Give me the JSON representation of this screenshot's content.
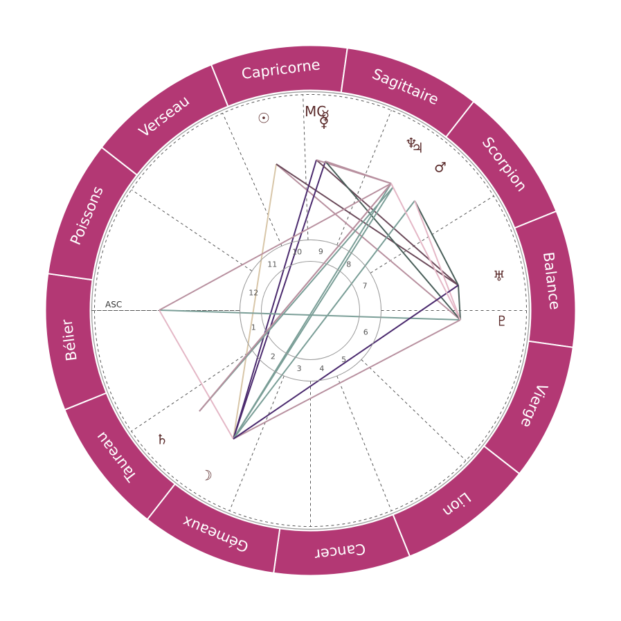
{
  "colors": {
    "zodiac_band": "#b33874",
    "band_divider": "#ffffff",
    "cusp_line": "#555555",
    "aspect_palette": [
      "#4b2a6e",
      "#7a9e97",
      "#b8909f",
      "#e4b7c6",
      "#6b4a5a",
      "#4a5f5a",
      "#d8c6a8"
    ]
  },
  "signs": [
    {
      "name": "Capricorne",
      "symbol": "capricorn"
    },
    {
      "name": "Sagittaire",
      "symbol": "sagittarius"
    },
    {
      "name": "Scorpion",
      "symbol": "scorpio"
    },
    {
      "name": "Balance",
      "symbol": "libra"
    },
    {
      "name": "Vierge",
      "symbol": "virgo"
    },
    {
      "name": "Lion",
      "symbol": "leo"
    },
    {
      "name": "Cancer",
      "symbol": "cancer"
    },
    {
      "name": "Gémeaux",
      "symbol": "gemini"
    },
    {
      "name": "Taureau",
      "symbol": "taurus"
    },
    {
      "name": "Bélier",
      "symbol": "aries"
    },
    {
      "name": "Poissons",
      "symbol": "pisces"
    },
    {
      "name": "Verseau",
      "symbol": "aquarius"
    }
  ],
  "houses": [
    "1",
    "2",
    "3",
    "4",
    "5",
    "6",
    "7",
    "8",
    "9",
    "10",
    "11",
    "12"
  ],
  "axes": {
    "asc": "ASC",
    "mc": "MC"
  },
  "planets": [
    {
      "name": "Soleil",
      "glyph": "☉",
      "icon": "sun-icon"
    },
    {
      "name": "Lune",
      "glyph": "☽",
      "icon": "moon-icon"
    },
    {
      "name": "Mercure",
      "glyph": "☿",
      "icon": "mercury-icon"
    },
    {
      "name": "Vénus",
      "glyph": "♀",
      "icon": "venus-icon"
    },
    {
      "name": "Mars",
      "glyph": "♂",
      "icon": "mars-icon"
    },
    {
      "name": "Jupiter",
      "glyph": "♃",
      "icon": "jupiter-icon"
    },
    {
      "name": "Saturne",
      "glyph": "♄",
      "icon": "saturn-icon"
    },
    {
      "name": "Uranus",
      "glyph": "♅",
      "icon": "uranus-icon"
    },
    {
      "name": "Neptune",
      "glyph": "♆",
      "icon": "neptune-icon"
    },
    {
      "name": "Pluton",
      "glyph": "♇",
      "icon": "pluto-icon"
    }
  ]
}
